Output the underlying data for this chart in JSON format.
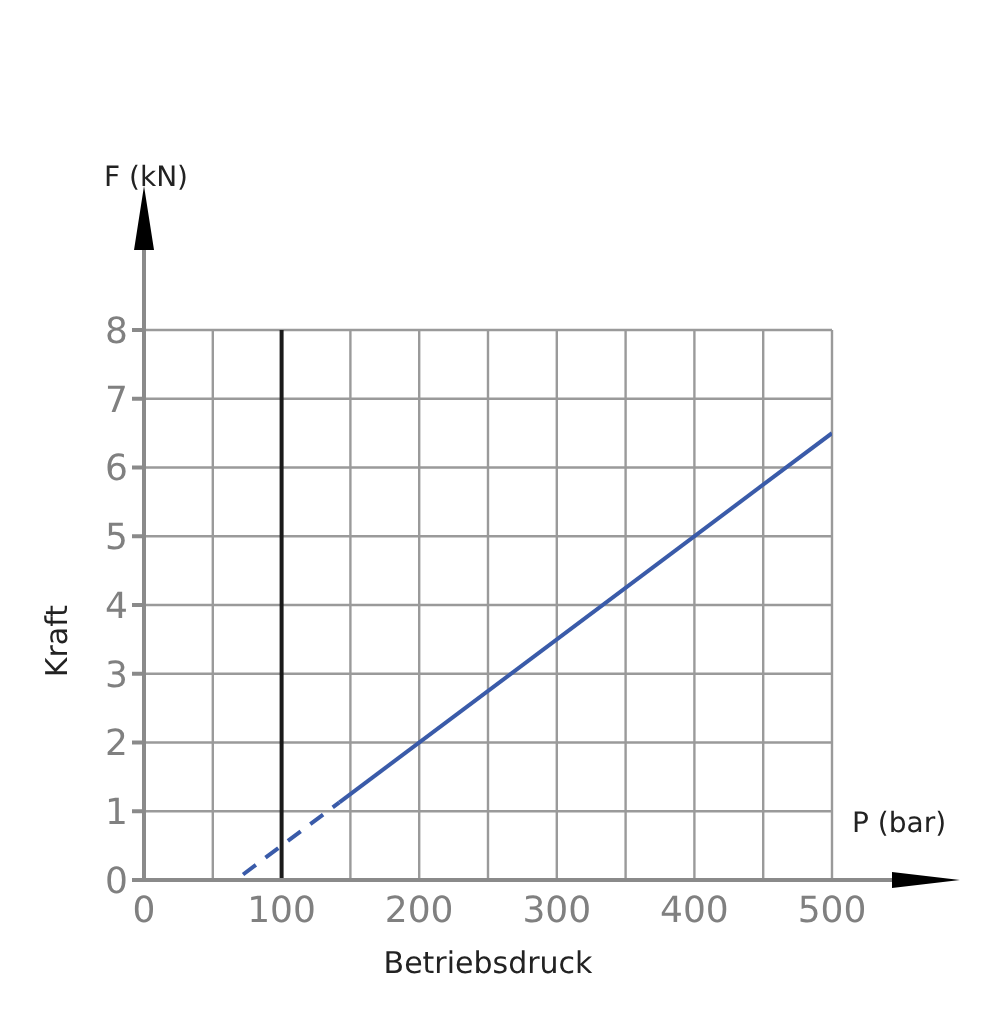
{
  "chart_data": {
    "type": "line",
    "xlabel": "Betriebsdruck",
    "ylabel": "Kraft",
    "annotations": [
      "F (kN)",
      "P (bar)"
    ],
    "series": [
      {
        "x": [
          72,
          142
        ],
        "values": [
          0.08,
          1.13
        ],
        "color": "#3a5ba9",
        "line_style": "dashed"
      },
      {
        "x": [
          142,
          500
        ],
        "values": [
          1.13,
          6.5
        ],
        "color": "#3a5ba9",
        "line_style": "solid"
      }
    ],
    "xlim": [
      0,
      500
    ],
    "xticks": [
      0,
      {
        "value": 50,
        "label": null
      },
      100,
      {
        "value": 150,
        "label": null
      },
      200,
      {
        "value": 250,
        "label": null
      },
      300,
      {
        "value": 350,
        "label": null
      },
      400,
      {
        "value": 450,
        "label": null
      },
      500
    ],
    "ylim": [
      0,
      8
    ],
    "yticks": [
      0,
      1,
      2,
      3,
      4,
      5,
      6,
      7,
      8
    ],
    "grid": true,
    "marker": "none",
    "ref_lines": [
      {
        "axis": "x",
        "value": 100,
        "color": "#1a1a1a"
      }
    ]
  }
}
